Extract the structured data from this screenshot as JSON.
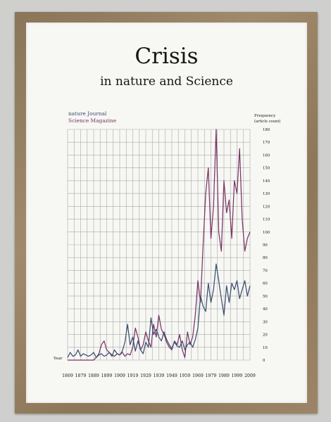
{
  "poster": {
    "title": "Crisis",
    "subtitle": "in nature and Science"
  },
  "colors": {
    "frame": "#9a8365",
    "paper": "#f7f7f4",
    "grid": "#a8a8a8",
    "nature": "#3b4f72",
    "science": "#7a3566",
    "text": "#161616"
  },
  "chart_data": {
    "type": "line",
    "legend": [
      "nature Journal",
      "Science Magazine"
    ],
    "legend_position": "top-left",
    "xlabel": "Year",
    "ylabel": "Frequency\n(article count)",
    "xlim": [
      1869,
      2009
    ],
    "ylim": [
      0,
      180
    ],
    "grid": true,
    "x_ticks": [
      1869,
      1879,
      1889,
      1899,
      1909,
      1919,
      1929,
      1939,
      1949,
      1959,
      1969,
      1979,
      1989,
      1999,
      2009
    ],
    "y_ticks": [
      0,
      10,
      20,
      30,
      40,
      50,
      60,
      70,
      80,
      90,
      100,
      110,
      120,
      130,
      140,
      150,
      160,
      170,
      180
    ],
    "x": [
      1869,
      1871,
      1873,
      1875,
      1877,
      1879,
      1881,
      1883,
      1885,
      1887,
      1889,
      1891,
      1893,
      1895,
      1897,
      1899,
      1901,
      1903,
      1905,
      1907,
      1909,
      1911,
      1913,
      1915,
      1917,
      1919,
      1921,
      1923,
      1925,
      1927,
      1929,
      1931,
      1933,
      1935,
      1937,
      1939,
      1941,
      1943,
      1945,
      1947,
      1949,
      1951,
      1953,
      1955,
      1957,
      1959,
      1961,
      1963,
      1965,
      1967,
      1969,
      1971,
      1973,
      1975,
      1977,
      1979,
      1981,
      1983,
      1985,
      1987,
      1989,
      1991,
      1993,
      1995,
      1997,
      1999,
      2001,
      2003,
      2005,
      2007,
      2009
    ],
    "series": [
      {
        "name": "nature Journal",
        "color": "#3b4f72",
        "values": [
          2,
          6,
          3,
          4,
          8,
          3,
          5,
          4,
          3,
          4,
          6,
          2,
          4,
          5,
          3,
          4,
          6,
          3,
          8,
          5,
          4,
          7,
          14,
          28,
          12,
          18,
          7,
          15,
          8,
          5,
          14,
          10,
          33,
          20,
          24,
          18,
          15,
          22,
          16,
          12,
          9,
          14,
          11,
          10,
          15,
          8,
          12,
          14,
          10,
          16,
          25,
          50,
          42,
          38,
          60,
          45,
          55,
          75,
          62,
          48,
          35,
          58,
          45,
          60,
          55,
          62,
          48,
          55,
          62,
          50,
          58
        ]
      },
      {
        "name": "Science Magazine",
        "color": "#7a3566",
        "values": [
          0,
          0,
          0,
          0,
          0,
          0,
          0,
          0,
          0,
          0,
          0,
          2,
          5,
          12,
          15,
          8,
          6,
          4,
          3,
          5,
          4,
          6,
          3,
          5,
          4,
          10,
          25,
          18,
          8,
          12,
          22,
          15,
          10,
          28,
          18,
          35,
          24,
          20,
          14,
          10,
          8,
          15,
          12,
          20,
          8,
          2,
          22,
          12,
          18,
          35,
          62,
          45,
          90,
          130,
          150,
          95,
          120,
          180,
          100,
          85,
          140,
          115,
          125,
          95,
          140,
          130,
          165,
          110,
          85,
          95,
          100
        ]
      }
    ]
  }
}
